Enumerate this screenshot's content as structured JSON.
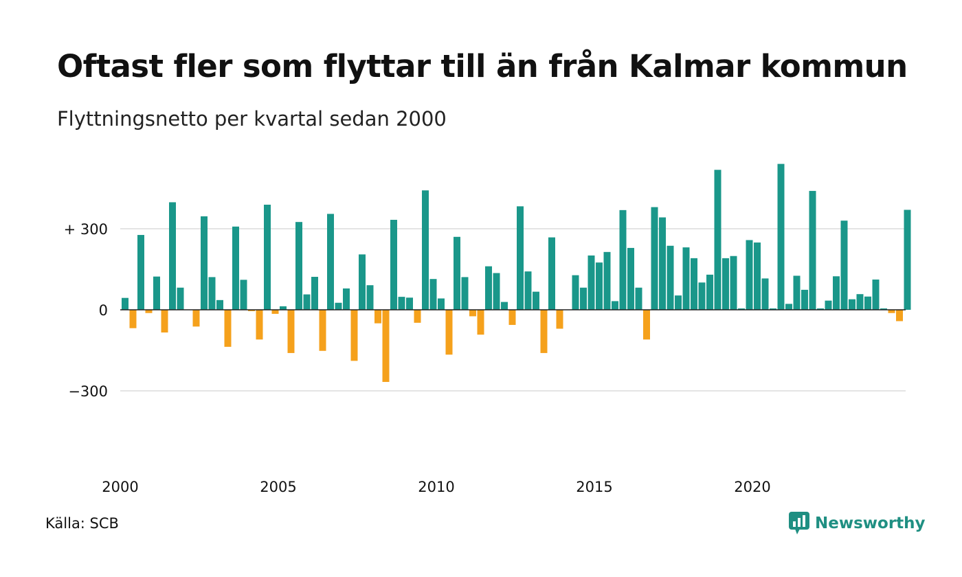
{
  "title": "Oftast fler som flyttar till än från Kalmar kommun",
  "subtitle": "Flyttningsnetto per kvartal sedan 2000",
  "source": "Källa: SCB",
  "brand": {
    "name": "Newsworthy",
    "icon": "newsworthy-logo-icon",
    "color": "#1f8f82"
  },
  "colors": {
    "positive": "#1a978a",
    "negative": "#f5a11c",
    "grid": "#e4e4e4",
    "baseline": "#222222"
  },
  "chart_data": {
    "type": "bar",
    "title": "Oftast fler som flyttar till än från Kalmar kommun",
    "subtitle": "Flyttningsnetto per kvartal sedan 2000",
    "xlabel": "",
    "ylabel": "",
    "start_year": 2000,
    "ylim": [
      -420,
      540
    ],
    "grid": true,
    "legend": "none",
    "y_ticks": [
      {
        "value": 300,
        "label": "+ 300"
      },
      {
        "value": 0,
        "label": "0"
      },
      {
        "value": -300,
        "label": "−300"
      }
    ],
    "x_ticks": [
      "2000",
      "2005",
      "2010",
      "2015",
      "2020"
    ],
    "series": [
      {
        "values": [
          44,
          -68,
          277,
          -12,
          123,
          -84,
          398,
          82,
          0,
          -62,
          346,
          121,
          36,
          -137,
          308,
          111,
          -5,
          -110,
          389,
          -15,
          13,
          -160,
          325,
          57,
          122,
          -152,
          355,
          26,
          79,
          -189,
          205,
          91,
          -50,
          -267,
          333,
          48,
          45,
          -48,
          442,
          114,
          42,
          -166,
          270,
          121,
          -24,
          -92,
          161,
          136,
          29,
          -56,
          383,
          142,
          67,
          -160,
          268,
          -70,
          0,
          128,
          82,
          201,
          175,
          214,
          32,
          369,
          229,
          82,
          -110,
          380,
          342,
          237,
          53,
          231,
          191,
          101,
          130,
          518,
          191,
          199,
          5,
          258,
          249,
          116,
          5,
          540,
          22,
          126,
          74,
          440,
          5,
          34,
          124,
          330,
          39,
          58,
          49,
          112,
          5,
          -12,
          -42,
          370
        ]
      }
    ]
  }
}
